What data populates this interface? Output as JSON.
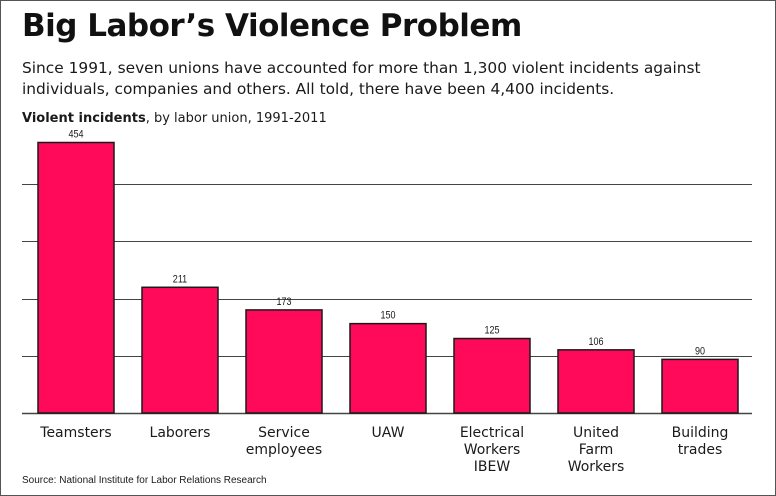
{
  "header": {
    "title": "Big Labor’s Violence Problem",
    "intro": "Since 1991, seven unions have accounted for more than 1,300 violent incidents against individuals, companies and others. All told, there have been 4,400 incidents.",
    "subtitle_bold": "Violent incidents",
    "subtitle_rest": ", by labor union, 1991-2011"
  },
  "footer": {
    "source": "Source: National Institute for Labor Relations Research"
  },
  "colors": {
    "bar_fill": "#ff0a5a",
    "bar_stroke": "#1a1a1a",
    "gridline": "#444444"
  },
  "chart_data": {
    "type": "bar",
    "title": "Violent incidents, by labor union, 1991-2011",
    "categories": [
      "Teamsters",
      "Laborers",
      "Service\nemployees",
      "UAW",
      "Electrical\nWorkers\nIBEW",
      "United\nFarm\nWorkers",
      "Building\ntrades"
    ],
    "values": [
      454,
      211,
      173,
      150,
      125,
      106,
      90
    ],
    "ylim": [
      0,
      480
    ],
    "gridlines": [
      0,
      96,
      192,
      288,
      384
    ],
    "grid": true,
    "legend": "none",
    "data_labels": true
  }
}
